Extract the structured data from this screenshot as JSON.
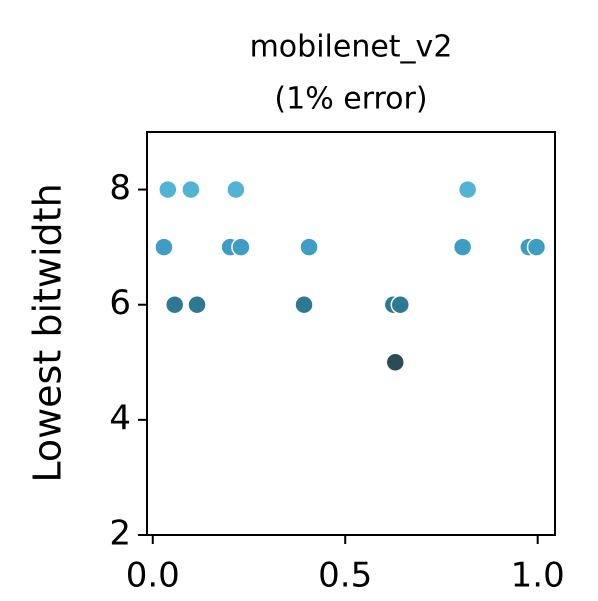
{
  "chart_data": {
    "type": "scatter",
    "title": [
      "mobilenet_v2",
      "(1% error)"
    ],
    "ylabel": "Lowest bitwidth",
    "x": [
      0.039,
      0.099,
      0.216,
      0.818,
      0.029,
      0.201,
      0.229,
      0.406,
      0.805,
      0.977,
      0.997,
      0.057,
      0.115,
      0.393,
      0.625,
      0.643,
      0.63
    ],
    "values": [
      8,
      8,
      8,
      8,
      7,
      7,
      7,
      7,
      7,
      7,
      7,
      6,
      6,
      6,
      6,
      6,
      5
    ],
    "colors": [
      "#52b3d3",
      "#52b3d3",
      "#52b3d3",
      "#52b3d3",
      "#3f9dc3",
      "#3f9dc3",
      "#3f9dc3",
      "#3f9dc3",
      "#3f9dc3",
      "#3f9dc3",
      "#3f9dc3",
      "#2f7893",
      "#2f7893",
      "#2f7893",
      "#2f7893",
      "#2f7893",
      "#2b4b59"
    ],
    "xlim": [
      -0.015,
      1.045
    ],
    "ylim": [
      2,
      9
    ],
    "xticks": [
      {
        "value": 0,
        "label": "0.0"
      },
      0.5,
      {
        "value": 1,
        "label": "1.0"
      }
    ],
    "yticks": [
      2,
      4,
      6,
      8
    ]
  }
}
